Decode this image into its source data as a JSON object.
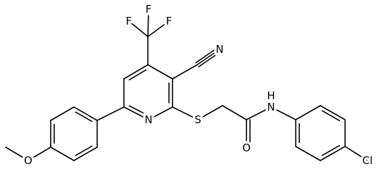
{
  "atoms": [
    {
      "label": "F"
    },
    {
      "label": "F"
    },
    {
      "label": "F"
    },
    {
      "label": "N"
    },
    {
      "label": "N"
    },
    {
      "label": "S"
    },
    {
      "label": "O"
    },
    {
      "label": "N"
    },
    {
      "label": "H"
    },
    {
      "label": "Cl"
    },
    {
      "label": "O"
    }
  ]
}
